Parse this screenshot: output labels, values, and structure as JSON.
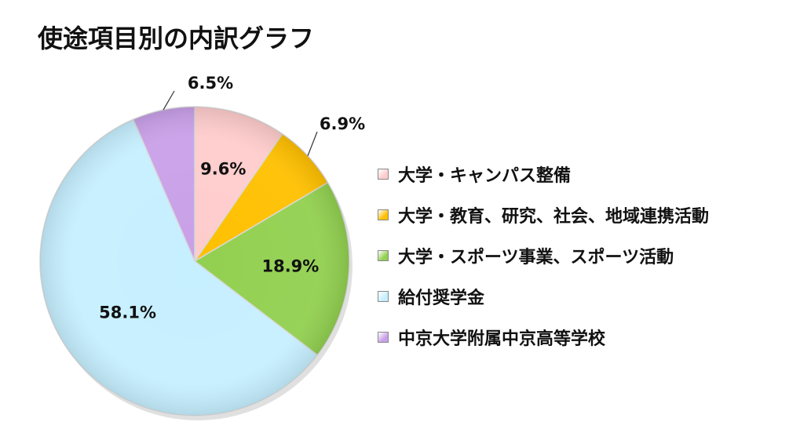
{
  "chart_data": {
    "type": "pie",
    "title": "使途項目別の内訳グラフ",
    "slices": [
      {
        "name": "大学・キャンパス整備",
        "value": 9.6,
        "label": "9.6%",
        "color": "#ffcccc"
      },
      {
        "name": "大学・教育、研究、社会、地域連携活動",
        "value": 6.9,
        "label": "6.9%",
        "color": "#ffc000"
      },
      {
        "name": "大学・スポーツ事業、スポーツ活動",
        "value": 18.9,
        "label": "18.9%",
        "color": "#92d050"
      },
      {
        "name": "給付奨学金",
        "value": 58.1,
        "label": "58.1%",
        "color": "#c6efff"
      },
      {
        "name": "中京大学附属中京高等学校",
        "value": 6.5,
        "label": "6.5%",
        "color": "#c9a0e8"
      }
    ],
    "start_angle_deg": 0,
    "direction": "clockwise",
    "legend_position": "right"
  }
}
